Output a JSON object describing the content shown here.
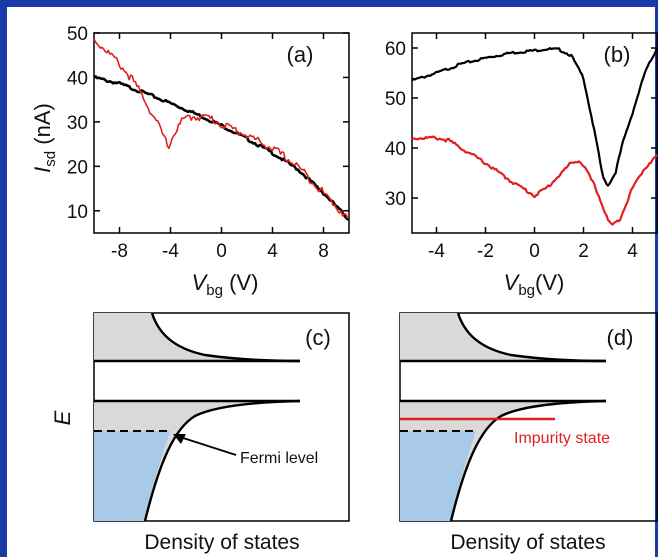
{
  "figure": {
    "border_color": "#1a3aa8",
    "curve_colors": {
      "black": "#000000",
      "red": "#e0201f"
    },
    "fill_colors": {
      "gray": "#d9d9d9",
      "blue": "#a9c9e8"
    }
  },
  "chart_data": [
    {
      "type": "line",
      "panel_label": "(a)",
      "xlabel": {
        "main": "V",
        "sub": "bg",
        "unit": " (V)"
      },
      "ylabel": {
        "main": "I",
        "sub": "sd",
        "unit": " (nA)"
      },
      "xlim": [
        -10,
        10
      ],
      "ylim": [
        5,
        50
      ],
      "x_ticks": [
        "-8",
        "-4",
        "0",
        "4",
        "8"
      ],
      "x_tick_values": [
        -8,
        -4,
        0,
        4,
        8
      ],
      "y_ticks": [
        "10",
        "20",
        "30",
        "40",
        "50"
      ],
      "y_tick_values": [
        10,
        20,
        30,
        40,
        50
      ],
      "series": [
        {
          "color": "#000000",
          "x": [
            -10,
            -8,
            -6,
            -4,
            -2,
            0,
            2,
            4,
            6,
            8,
            10
          ],
          "values": [
            40,
            38.6,
            36.5,
            34.2,
            31.8,
            29.2,
            26.2,
            23,
            19.3,
            14,
            8
          ]
        },
        {
          "color": "#e0201f",
          "x": [
            -10,
            -9,
            -8,
            -7,
            -6,
            -5.5,
            -5,
            -4.5,
            -4.2,
            -4,
            -3.5,
            -3,
            -2.5,
            -2,
            -1,
            0,
            2,
            4,
            6,
            8,
            10
          ],
          "values": [
            48.5,
            46,
            43,
            39.5,
            35,
            32,
            29.5,
            26.5,
            24.5,
            25.5,
            28.5,
            30.5,
            31,
            31.2,
            31,
            29.5,
            27,
            24,
            20,
            14,
            8
          ]
        }
      ]
    },
    {
      "type": "line",
      "panel_label": "(b)",
      "xlabel": {
        "main": "V",
        "sub": "bg",
        "unit": "(V)"
      },
      "xlim": [
        -5,
        5
      ],
      "ylim": [
        23,
        63
      ],
      "x_ticks": [
        "-4",
        "-2",
        "0",
        "2",
        "4"
      ],
      "x_tick_values": [
        -4,
        -2,
        0,
        2,
        4
      ],
      "y_ticks": [
        "30",
        "40",
        "50",
        "60"
      ],
      "y_tick_values": [
        30,
        40,
        50,
        60
      ],
      "series": [
        {
          "color": "#000000",
          "x": [
            -5,
            -4,
            -3,
            -2,
            -1,
            0,
            0.5,
            1,
            1.5,
            2,
            2.5,
            2.8,
            3,
            3.3,
            3.6,
            4,
            4.5,
            5
          ],
          "values": [
            53.5,
            55,
            56.8,
            58,
            59,
            59.5,
            59.8,
            59.7,
            58.5,
            54,
            42,
            34,
            32.5,
            35,
            41,
            47,
            55,
            60
          ]
        },
        {
          "color": "#e0201f",
          "x": [
            -5,
            -4,
            -3.5,
            -3,
            -2,
            -1,
            0,
            0.5,
            1,
            1.5,
            1.8,
            2,
            2.5,
            3,
            3.2,
            3.5,
            4,
            4.5,
            5
          ],
          "values": [
            42,
            42,
            41.5,
            40,
            37,
            33.5,
            30.5,
            32,
            34.5,
            37,
            37.5,
            36.5,
            32,
            25.5,
            24.5,
            26,
            32,
            36,
            38.5
          ]
        }
      ]
    },
    {
      "type": "line",
      "panel_label": "(c)",
      "ylabel": "E",
      "xlabel": "Density of states",
      "annotations": [
        {
          "text": "Fermi level"
        }
      ]
    },
    {
      "type": "line",
      "panel_label": "(d)",
      "xlabel": "Density of states",
      "annotations": [
        {
          "text": "Impurity state",
          "color": "#e0201f"
        }
      ]
    }
  ]
}
